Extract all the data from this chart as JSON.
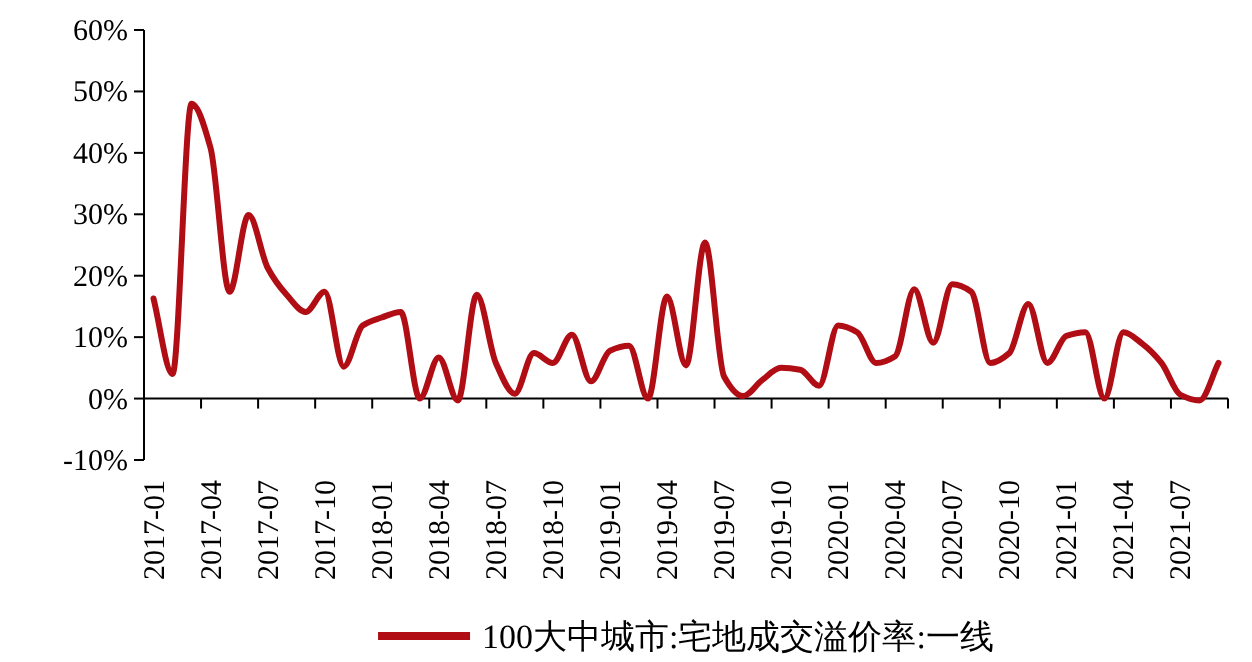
{
  "chart_data": {
    "type": "line",
    "categories": [
      "2017-01",
      null,
      null,
      "2017-04",
      null,
      null,
      "2017-07",
      null,
      null,
      "2017-10",
      null,
      null,
      "2018-01",
      null,
      null,
      "2018-04",
      null,
      null,
      "2018-07",
      null,
      null,
      "2018-10",
      null,
      null,
      "2019-01",
      null,
      null,
      "2019-04",
      null,
      null,
      "2019-07",
      null,
      null,
      "2019-10",
      null,
      null,
      "2020-01",
      null,
      null,
      "2020-04",
      null,
      null,
      "2020-07",
      null,
      null,
      "2020-10",
      null,
      null,
      "2021-01",
      null,
      null,
      "2021-04",
      null,
      null,
      "2021-07",
      null,
      null
    ],
    "series": [
      {
        "name": "100大中城市:宅地成交溢价率:一线",
        "color": "#b00d14",
        "values": [
          16.3,
          4,
          48,
          40.8,
          17.4,
          29.9,
          21.3,
          16.9,
          14.1,
          17.4,
          5.2,
          11.9,
          13.2,
          14.1,
          0,
          6.7,
          -0.3,
          16.9,
          5.8,
          0.8,
          7.4,
          5.8,
          10.4,
          2.8,
          7.8,
          8.6,
          0,
          16.6,
          5.4,
          25.4,
          3.6,
          0.4,
          3,
          5,
          4.7,
          2.1,
          11.9,
          10.8,
          5.8,
          6.9,
          17.8,
          9.1,
          18.6,
          17.4,
          5.8,
          7.4,
          15.4,
          5.8,
          10.2,
          10.8,
          0,
          10.8,
          8.9,
          5.8,
          0.6,
          -0.3,
          5.8
        ]
      }
    ],
    "ylim": [
      -10,
      60
    ],
    "yticks": [
      {
        "value": -10,
        "label": "-10%"
      },
      {
        "value": 0,
        "label": "0%"
      },
      {
        "value": 10,
        "label": "10%"
      },
      {
        "value": 20,
        "label": "20%"
      },
      {
        "value": 30,
        "label": "30%"
      },
      {
        "value": 40,
        "label": "40%"
      },
      {
        "value": 50,
        "label": "50%"
      },
      {
        "value": 60,
        "label": "60%"
      }
    ],
    "legend": "bottom"
  }
}
